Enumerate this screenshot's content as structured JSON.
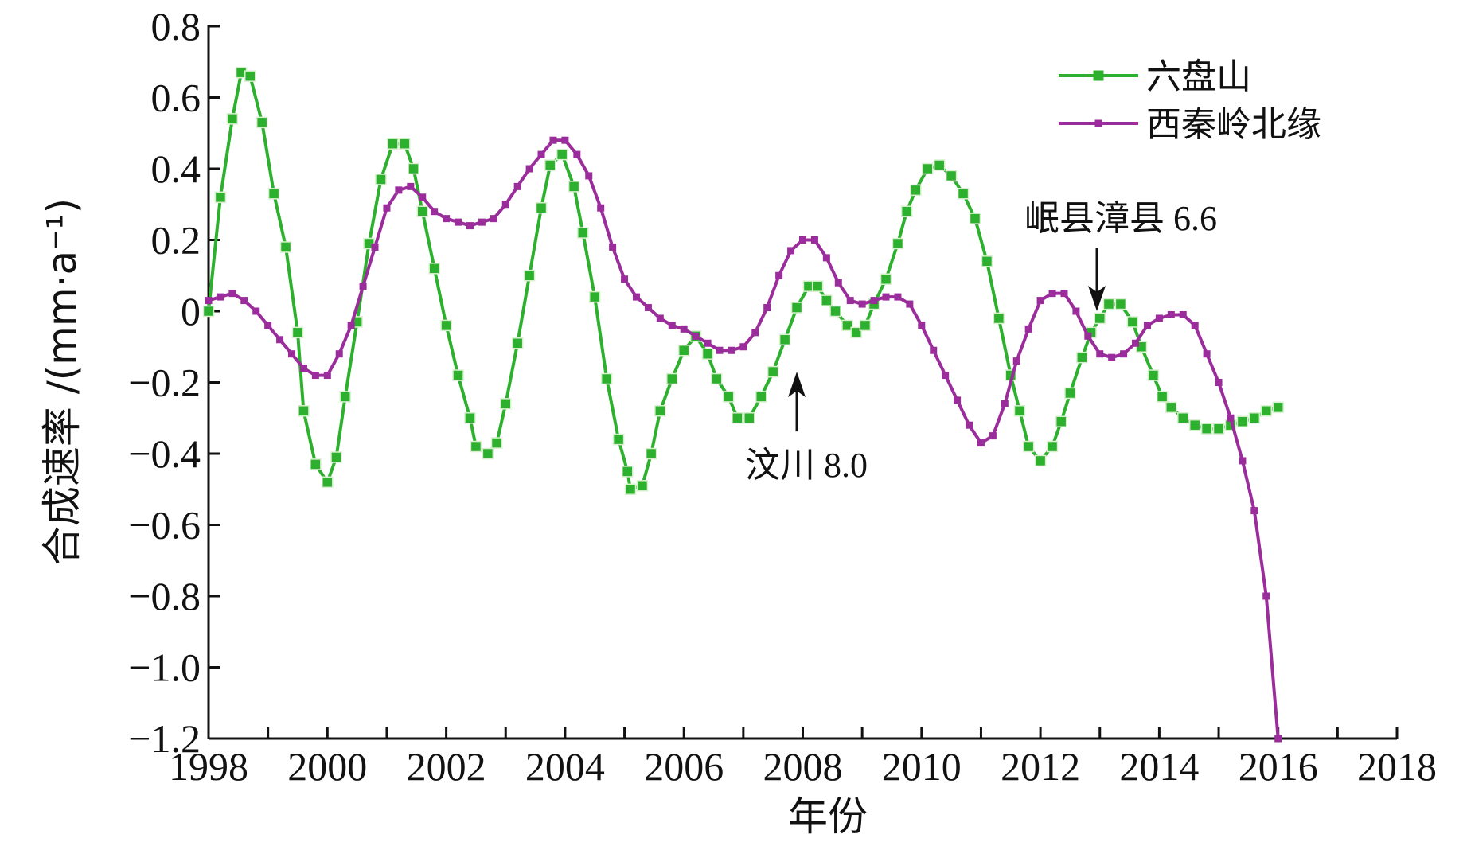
{
  "chart_data": {
    "type": "line",
    "xlabel": "年份",
    "ylabel": "合成速率 /(mm·a⁻¹)",
    "xlim": [
      1998,
      2018
    ],
    "xticks": [
      1998,
      2000,
      2002,
      2004,
      2006,
      2008,
      2010,
      2012,
      2014,
      2016,
      2018
    ],
    "xminorticks": [
      1999,
      2001,
      2003,
      2005,
      2007,
      2009,
      2011,
      2013,
      2015,
      2017
    ],
    "ylim": [
      -1.2,
      0.8
    ],
    "yticks": [
      {
        "value": -1.2,
        "label": "−1.2"
      },
      {
        "value": -1.0,
        "label": "−1.0"
      },
      {
        "value": -0.8,
        "label": "−0.8"
      },
      {
        "value": -0.6,
        "label": "−0.6"
      },
      {
        "value": -0.4,
        "label": "−0.4"
      },
      {
        "value": -0.2,
        "label": "−0.2"
      },
      0,
      0.2,
      0.4,
      0.6,
      0.8
    ],
    "legend": "upper right",
    "grid": false,
    "series": [
      {
        "name": "六盘山",
        "color": "#2db02d",
        "marker": "square",
        "x": [
          1998.0,
          1998.2,
          1998.4,
          1998.55,
          1998.7,
          1998.9,
          1999.1,
          1999.3,
          1999.5,
          1999.6,
          1999.8,
          2000.0,
          2000.15,
          2000.3,
          2000.5,
          2000.7,
          2000.9,
          2001.1,
          2001.3,
          2001.45,
          2001.6,
          2001.8,
          2002.0,
          2002.2,
          2002.4,
          2002.5,
          2002.7,
          2002.85,
          2003.0,
          2003.2,
          2003.4,
          2003.6,
          2003.75,
          2003.95,
          2004.15,
          2004.3,
          2004.5,
          2004.7,
          2004.9,
          2005.05,
          2005.1,
          2005.3,
          2005.45,
          2005.6,
          2005.8,
          2006.0,
          2006.2,
          2006.4,
          2006.55,
          2006.75,
          2006.9,
          2007.1,
          2007.3,
          2007.5,
          2007.7,
          2007.9,
          2008.1,
          2008.25,
          2008.4,
          2008.55,
          2008.75,
          2008.9,
          2009.05,
          2009.2,
          2009.4,
          2009.6,
          2009.75,
          2009.9,
          2010.1,
          2010.3,
          2010.5,
          2010.7,
          2010.9,
          2011.1,
          2011.3,
          2011.5,
          2011.65,
          2011.8,
          2012.0,
          2012.2,
          2012.35,
          2012.5,
          2012.7,
          2012.85,
          2013.0,
          2013.15,
          2013.35,
          2013.55,
          2013.7,
          2013.9,
          2014.05,
          2014.2,
          2014.4,
          2014.6,
          2014.8,
          2015.0,
          2015.2,
          2015.4,
          2015.6,
          2015.8,
          2016.0
        ],
        "values": [
          0.0,
          0.32,
          0.54,
          0.67,
          0.66,
          0.53,
          0.33,
          0.18,
          -0.06,
          -0.28,
          -0.43,
          -0.48,
          -0.41,
          -0.24,
          -0.03,
          0.19,
          0.37,
          0.47,
          0.47,
          0.4,
          0.28,
          0.12,
          -0.04,
          -0.18,
          -0.3,
          -0.38,
          -0.4,
          -0.37,
          -0.26,
          -0.09,
          0.1,
          0.29,
          0.41,
          0.44,
          0.35,
          0.22,
          0.04,
          -0.19,
          -0.36,
          -0.45,
          -0.5,
          -0.49,
          -0.4,
          -0.28,
          -0.19,
          -0.11,
          -0.07,
          -0.12,
          -0.19,
          -0.24,
          -0.3,
          -0.3,
          -0.24,
          -0.17,
          -0.08,
          0.01,
          0.07,
          0.07,
          0.03,
          0.0,
          -0.04,
          -0.06,
          -0.04,
          0.02,
          0.09,
          0.19,
          0.28,
          0.34,
          0.4,
          0.41,
          0.38,
          0.33,
          0.26,
          0.14,
          -0.02,
          -0.18,
          -0.28,
          -0.38,
          -0.42,
          -0.38,
          -0.31,
          -0.23,
          -0.13,
          -0.06,
          -0.02,
          0.02,
          0.02,
          -0.03,
          -0.1,
          -0.18,
          -0.24,
          -0.27,
          -0.3,
          -0.32,
          -0.33,
          -0.33,
          -0.32,
          -0.31,
          -0.3,
          -0.28,
          -0.27
        ]
      },
      {
        "name": "西秦岭北缘",
        "color": "#9b2c9b",
        "marker": "small-square",
        "x": [
          1998.0,
          1998.2,
          1998.4,
          1998.6,
          1998.8,
          1999.0,
          1999.2,
          1999.4,
          1999.6,
          1999.8,
          2000.0,
          2000.2,
          2000.4,
          2000.6,
          2000.8,
          2001.0,
          2001.2,
          2001.4,
          2001.6,
          2001.8,
          2002.0,
          2002.2,
          2002.4,
          2002.6,
          2002.8,
          2003.0,
          2003.2,
          2003.4,
          2003.6,
          2003.8,
          2004.0,
          2004.2,
          2004.4,
          2004.6,
          2004.8,
          2005.0,
          2005.2,
          2005.4,
          2005.6,
          2005.8,
          2006.0,
          2006.2,
          2006.4,
          2006.6,
          2006.8,
          2007.0,
          2007.2,
          2007.4,
          2007.6,
          2007.8,
          2008.0,
          2008.2,
          2008.4,
          2008.6,
          2008.8,
          2009.0,
          2009.2,
          2009.4,
          2009.6,
          2009.8,
          2010.0,
          2010.2,
          2010.4,
          2010.6,
          2010.8,
          2011.0,
          2011.2,
          2011.4,
          2011.6,
          2011.8,
          2012.0,
          2012.2,
          2012.4,
          2012.6,
          2012.8,
          2013.0,
          2013.2,
          2013.4,
          2013.6,
          2013.8,
          2014.0,
          2014.2,
          2014.4,
          2014.6,
          2014.8,
          2015.0,
          2015.2,
          2015.4,
          2015.6,
          2015.8,
          2016.0
        ],
        "values": [
          0.03,
          0.04,
          0.05,
          0.03,
          0.0,
          -0.04,
          -0.08,
          -0.12,
          -0.16,
          -0.18,
          -0.18,
          -0.12,
          -0.04,
          0.07,
          0.18,
          0.29,
          0.34,
          0.35,
          0.32,
          0.28,
          0.26,
          0.25,
          0.24,
          0.25,
          0.26,
          0.3,
          0.35,
          0.4,
          0.44,
          0.48,
          0.48,
          0.44,
          0.38,
          0.29,
          0.18,
          0.09,
          0.04,
          0.01,
          -0.02,
          -0.04,
          -0.05,
          -0.07,
          -0.09,
          -0.11,
          -0.11,
          -0.1,
          -0.06,
          0.01,
          0.1,
          0.17,
          0.2,
          0.2,
          0.15,
          0.08,
          0.03,
          0.02,
          0.03,
          0.04,
          0.04,
          0.02,
          -0.04,
          -0.11,
          -0.18,
          -0.25,
          -0.32,
          -0.37,
          -0.35,
          -0.26,
          -0.14,
          -0.05,
          0.03,
          0.05,
          0.05,
          0.0,
          -0.07,
          -0.12,
          -0.13,
          -0.12,
          -0.09,
          -0.04,
          -0.02,
          -0.01,
          -0.01,
          -0.04,
          -0.12,
          -0.2,
          -0.3,
          -0.42,
          -0.56,
          -0.8,
          -1.2
        ]
      }
    ],
    "annotations": [
      {
        "text": "汶川 8.0",
        "x": 2007.9,
        "y": -0.17,
        "arrow": "up"
      },
      {
        "text": "岷县漳县 6.6",
        "x": 2012.95,
        "y": 0.0,
        "arrow": "down"
      }
    ]
  }
}
